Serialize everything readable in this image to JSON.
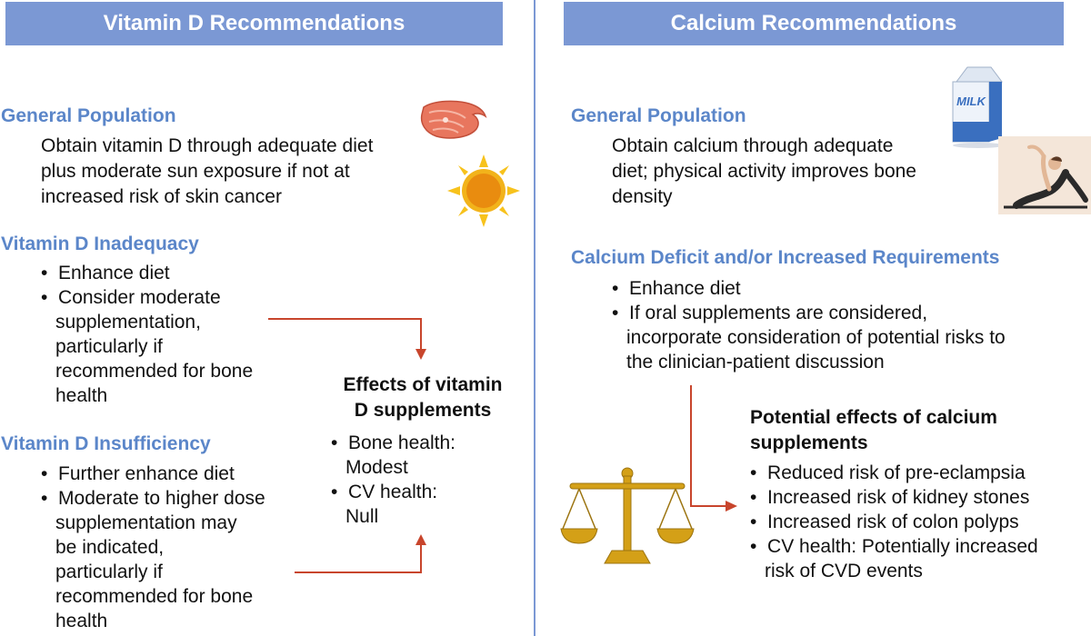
{
  "colors": {
    "banner": "#7b98d4",
    "heading": "#5b86c9",
    "arrow": "#c8452c",
    "text": "#111111"
  },
  "vitamin_d": {
    "title": "Vitamin D Recommendations",
    "general": {
      "heading": "General Population",
      "lines": [
        "Obtain vitamin D through adequate diet",
        "plus moderate sun exposure if not at",
        "increased risk of skin cancer"
      ]
    },
    "inadequacy": {
      "heading": "Vitamin D Inadequacy",
      "items": [
        [
          "Enhance diet"
        ],
        [
          "Consider moderate",
          "supplementation,",
          "particularly if",
          "recommended for bone",
          "health"
        ]
      ]
    },
    "insufficiency": {
      "heading": "Vitamin D Insufficiency",
      "items": [
        [
          "Further enhance diet"
        ],
        [
          "Moderate to higher dose",
          "supplementation may",
          "be indicated,",
          "particularly if",
          "recommended for bone",
          "health"
        ]
      ]
    },
    "effects": {
      "title_lines": [
        "Effects of vitamin",
        "D supplements"
      ],
      "items": [
        [
          "Bone health:",
          "Modest"
        ],
        [
          "CV health:",
          "Null"
        ]
      ]
    }
  },
  "calcium": {
    "title": "Calcium Recommendations",
    "general": {
      "heading": "General Population",
      "lines": [
        "Obtain calcium through adequate",
        "diet; physical activity improves bone",
        "density"
      ]
    },
    "deficit": {
      "heading": "Calcium Deficit and/or Increased Requirements",
      "items": [
        [
          "Enhance diet"
        ],
        [
          "If oral supplements are considered,",
          "incorporate consideration of potential risks to",
          "the clinician-patient discussion"
        ]
      ]
    },
    "effects": {
      "title_lines": [
        "Potential effects of calcium",
        "supplements"
      ],
      "items": [
        [
          "Reduced risk of pre-eclampsia"
        ],
        [
          "Increased risk of kidney stones"
        ],
        [
          "Increased risk of colon polyps"
        ],
        [
          "CV health: Potentially increased",
          "risk of CVD events"
        ]
      ]
    },
    "milk_label": "MILK"
  },
  "icons": [
    "salmon-steak-icon",
    "sun-icon",
    "milk-carton-icon",
    "yoga-pose-icon",
    "balance-scale-icon"
  ]
}
